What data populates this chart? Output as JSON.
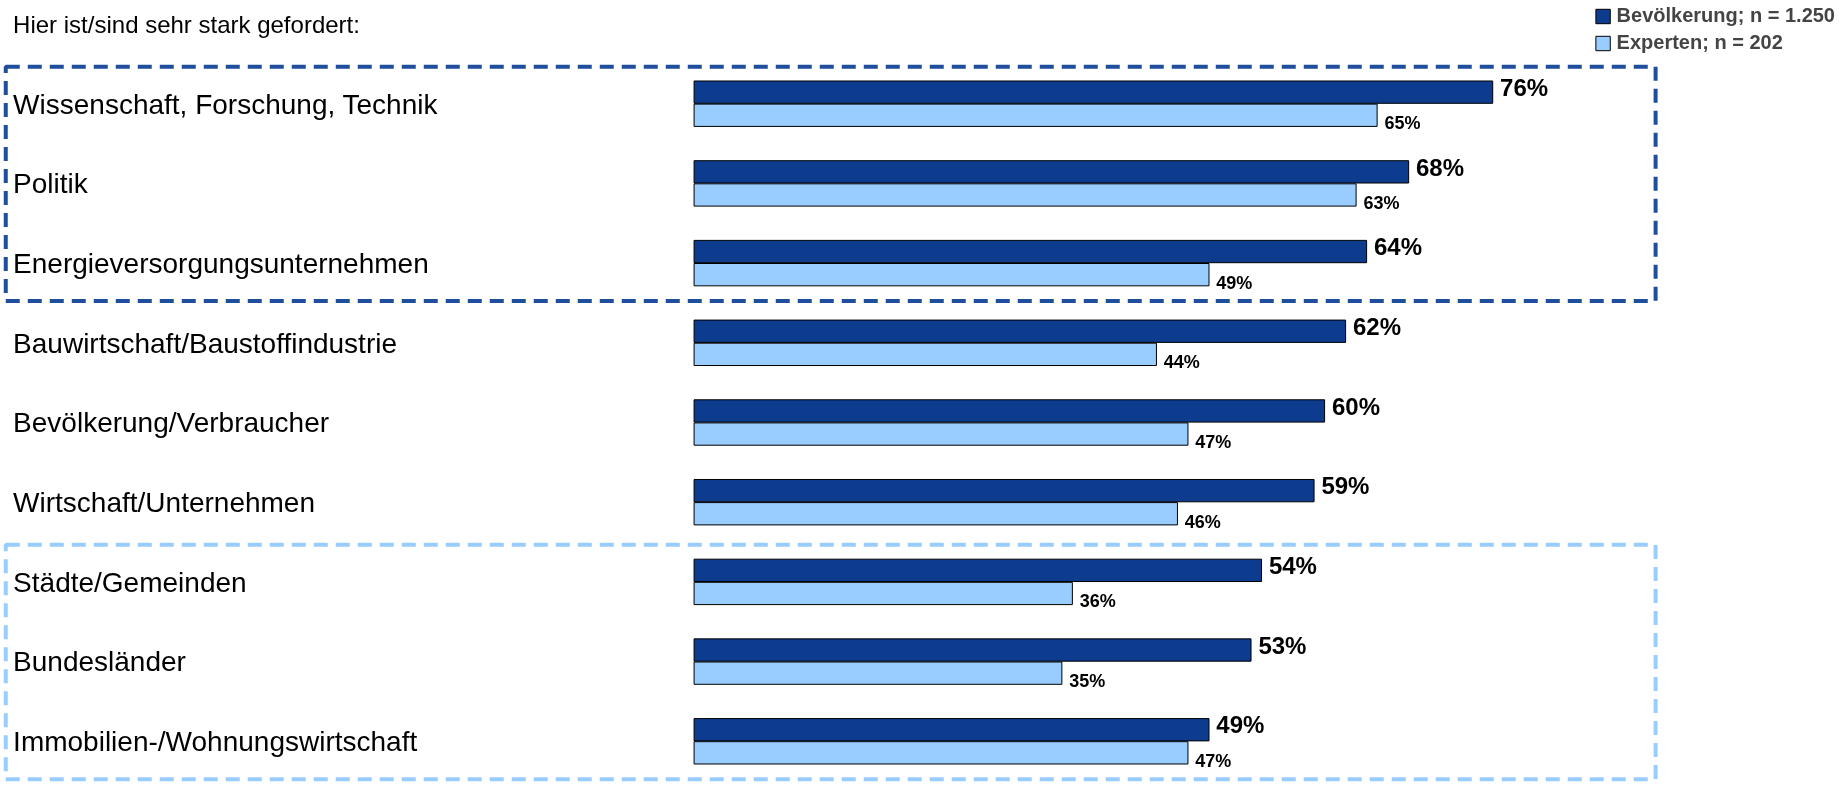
{
  "chart_data": {
    "type": "bar",
    "orientation": "horizontal",
    "title": "Hier ist/sind sehr stark gefordert:",
    "categories": [
      "Wissenschaft, Forschung, Technik",
      "Politik",
      "Energieversorgungsunternehmen",
      "Bauwirtschaft/Baustoffindustrie",
      "Bevölkerung/Verbraucher",
      "Wirtschaft/Unternehmen",
      "Städte/Gemeinden",
      "Bundesländer",
      "Immobilien-/Wohnungswirtschaft"
    ],
    "series": [
      {
        "name": "Bevölkerung; n = 1.250",
        "color": "#0d3b8e",
        "values": [
          76,
          68,
          64,
          62,
          60,
          59,
          54,
          53,
          49
        ],
        "value_labels": [
          "76%",
          "68%",
          "64%",
          "62%",
          "60%",
          "59%",
          "54%",
          "53%",
          "49%"
        ]
      },
      {
        "name": "Experten; n = 202",
        "color": "#99ccff",
        "values": [
          65,
          63,
          49,
          44,
          47,
          46,
          36,
          35,
          47
        ],
        "value_labels": [
          "65%",
          "63%",
          "49%",
          "44%",
          "47%",
          "46%",
          "36%",
          "35%",
          "47%"
        ]
      }
    ],
    "tick_labels": false,
    "legend": "top right"
  }
}
